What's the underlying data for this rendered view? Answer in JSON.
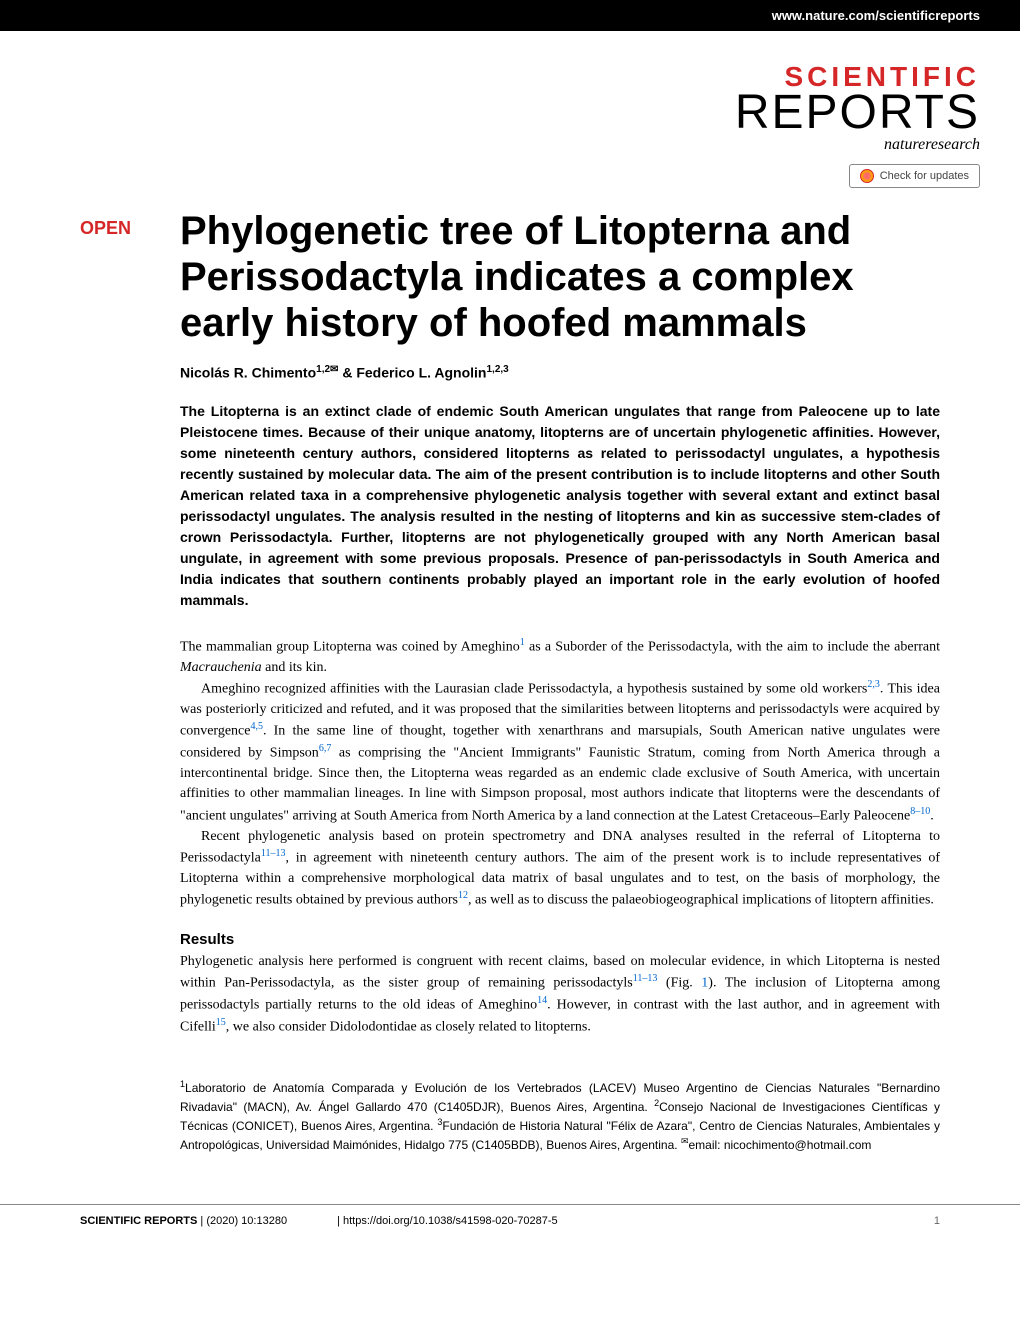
{
  "header": {
    "url": "www.nature.com/scientificreports"
  },
  "journal": {
    "word1": "SCIENTIFIC",
    "word2": "REPORTS",
    "publisher": "natureresearch"
  },
  "check_updates": {
    "label": "Check for updates"
  },
  "article": {
    "open_label": "OPEN",
    "title": "Phylogenetic tree of Litopterna and Perissodactyla indicates a complex early history of hoofed mammals",
    "authors_html": "Nicolás R. Chimento<sup>1,2</sup><span class='envelope'>✉</span> & Federico L. Agnolin<sup>1,2,3</sup>",
    "abstract": "The Litopterna is an extinct clade of endemic South American ungulates that range from Paleocene up to late Pleistocene times. Because of their unique anatomy, litopterns are of uncertain phylogenetic affinities. However, some nineteenth century authors, considered litopterns as related to perissodactyl ungulates, a hypothesis recently sustained by molecular data. The aim of the present contribution is to include litopterns and other South American related taxa in a comprehensive phylogenetic analysis together with several extant and extinct basal perissodactyl ungulates. The analysis resulted in the nesting of litopterns and kin as successive stem-clades of crown Perissodactyla. Further, litopterns are not phylogenetically grouped with any North American basal ungulate, in agreement with some previous proposals. Presence of pan-perissodactyls in South America and India indicates that southern continents probably played an important role in the early evolution of hoofed mammals.",
    "intro_p1": "The mammalian group Litopterna was coined by Ameghino<sup>1</sup> as a Suborder of the Perissodactyla, with the aim to include the aberrant <span class='italic'>Macrauchenia</span> and its kin.",
    "intro_p2": "Ameghino recognized affinities with the Laurasian clade Perissodactyla, a hypothesis sustained by some old workers<sup>2,3</sup>. This idea was posteriorly criticized and refuted, and it was proposed that the similarities between litopterns and perissodactyls were acquired by convergence<sup>4,5</sup>. In the same line of thought, together with xenarthrans and marsupials, South American native ungulates were considered by Simpson<sup>6,7</sup> as comprising the \"Ancient Immigrants\" Faunistic Stratum, coming from North America through a intercontinental bridge. Since then, the Litopterna weas regarded as an endemic clade exclusive of South America, with uncertain affinities to other mammalian lineages. In line with Simpson proposal, most authors indicate that litopterns were the descendants of \"ancient ungulates\" arriving at South America from North America by a land connection at the Latest Cretaceous–Early Paleocene<sup>8–10</sup>.",
    "intro_p3": "Recent phylogenetic analysis based on protein spectrometry and DNA analyses resulted in the referral of Litopterna to Perissodactyla<sup>11–13</sup>, in agreement with nineteenth century authors. The aim of the present work is to include representatives of Litopterna within a comprehensive morphological data matrix of basal ungulates and to test, on the basis of morphology, the phylogenetic results obtained by previous authors<sup>12</sup>, as well as to discuss the palaeobiogeographical implications of litoptern affinities.",
    "results_heading": "Results",
    "results_p1": "Phylogenetic analysis here performed is congruent with recent claims, based on molecular evidence, in which Litopterna is nested within Pan-Perissodactyla, as the sister group of remaining perissodactyls<sup>11–13</sup> (Fig. <span class='fig-ref'>1</span>). The inclusion of Litopterna among perissodactyls partially returns to the old ideas of Ameghino<sup>14</sup>. However, in contrast with the last author, and in agreement with Cifelli<sup>15</sup>, we also consider Didolodontidae as closely related to litopterns.",
    "affiliations_html": "<sup>1</sup>Laboratorio de Anatomía Comparada y Evolución de los Vertebrados (LACEV) Museo Argentino de Ciencias Naturales \"Bernardino Rivadavia\" (MACN), Av. Ángel Gallardo 470 (C1405DJR), Buenos Aires, Argentina. <sup>2</sup>Consejo Nacional de Investigaciones Científicas y Técnicas (CONICET), Buenos Aires, Argentina. <sup>3</sup>Fundación de Historia Natural \"Félix de Azara\", Centro de Ciencias Naturales, Ambientales y Antropológicas, Universidad Maimónides, Hidalgo 775 (C1405BDB), Buenos Aires, Argentina. <sup>✉</sup>email: nicochimento@hotmail.com"
  },
  "footer": {
    "journal": "SCIENTIFIC REPORTS",
    "citation": "(2020) 10:13280",
    "doi": "https://doi.org/10.1038/s41598-020-70287-5",
    "page": "1"
  },
  "colors": {
    "accent_red": "#d62728",
    "link_blue": "#0066cc",
    "black": "#000000",
    "white": "#ffffff",
    "gray": "#666666"
  },
  "typography": {
    "title_fontsize": 40,
    "body_fontsize": 14,
    "abstract_fontsize": 14,
    "footer_fontsize": 11
  }
}
